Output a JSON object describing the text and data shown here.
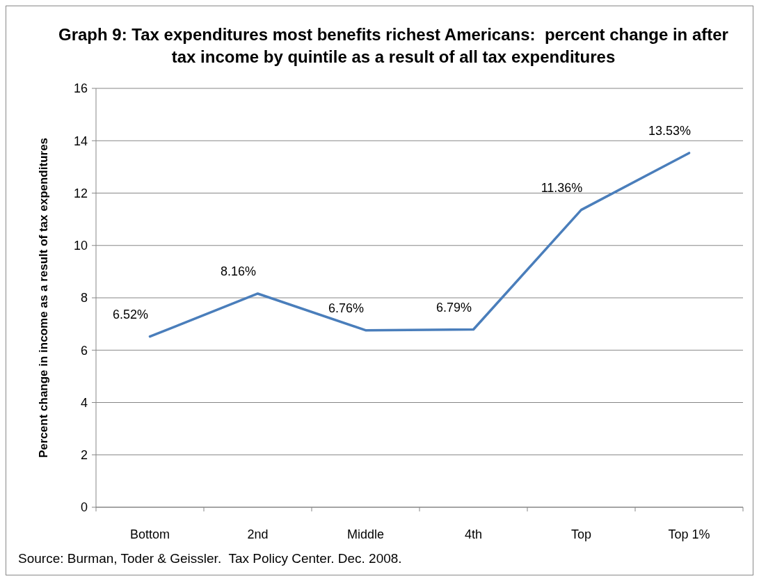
{
  "chart_data": {
    "type": "line",
    "title": "Graph 9: Tax expenditures most benefits richest Americans:  percent change in after tax income by quintile as a result of all tax expenditures",
    "ylabel": "Percent change in income as a result of tax expenditures",
    "annotations": [
      "Source: Burman, Toder & Geissler.  Tax Policy Center. Dec. 2008."
    ],
    "categories": [
      "Bottom",
      "2nd",
      "Middle",
      "4th",
      "Top",
      "Top 1%"
    ],
    "series": [
      {
        "color": "#4a7ebb",
        "values": [
          6.52,
          8.16,
          6.76,
          6.79,
          11.36,
          13.53
        ],
        "value_labels": [
          "6.52%",
          "8.16%",
          "6.76%",
          "6.79%",
          "11.36%",
          "13.53%"
        ]
      }
    ],
    "ylim": [
      0,
      16
    ],
    "yticks": [
      0,
      2,
      4,
      6,
      8,
      10,
      12,
      14,
      16
    ],
    "grid": "y",
    "marker": "none",
    "line_style": "solid"
  }
}
